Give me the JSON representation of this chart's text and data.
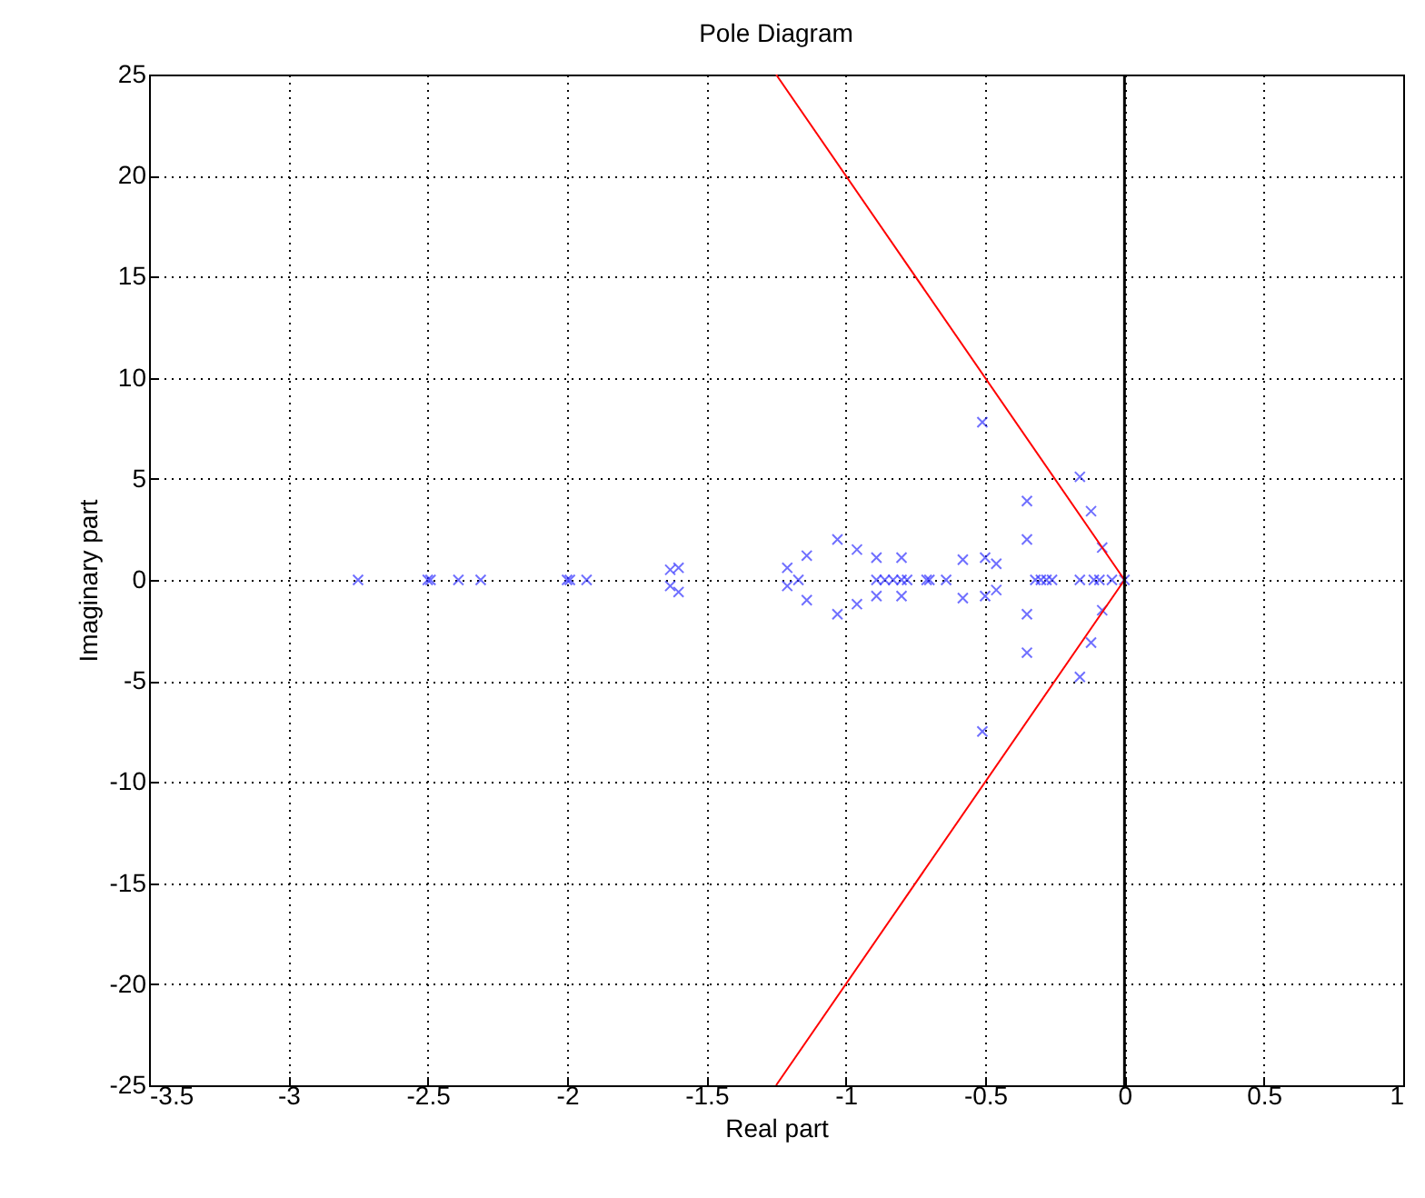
{
  "chart_data": {
    "type": "scatter",
    "title": "Pole Diagram",
    "xlabel": "Real part",
    "ylabel": "Imaginary part",
    "xlim": [
      -3.5,
      1
    ],
    "ylim": [
      -25,
      25
    ],
    "xticks": [
      -3.5,
      -3,
      -2.5,
      -2,
      -1.5,
      -1,
      -0.5,
      0,
      0.5,
      1
    ],
    "yticks": [
      -25,
      -20,
      -15,
      -10,
      -5,
      0,
      5,
      10,
      15,
      20,
      25
    ],
    "grid": true,
    "series": [
      {
        "color": "#3333ff",
        "marker": "cross",
        "x": [
          -2.75,
          -2.5,
          -2.49,
          -2.39,
          -2.31,
          -2.0,
          -1.99,
          -1.93,
          -1.63,
          -1.6,
          -1.63,
          -1.6,
          -1.21,
          -1.21,
          -1.17,
          -1.14,
          -1.14,
          -1.03,
          -1.03,
          -0.96,
          -0.96,
          -0.89,
          -0.89,
          -0.8,
          -0.8,
          -0.89,
          -0.86,
          -0.83,
          -0.8,
          -0.78,
          -0.71,
          -0.7,
          -0.64,
          -0.58,
          -0.58,
          -0.5,
          -0.46,
          -0.5,
          -0.46,
          -0.51,
          -0.51,
          -0.35,
          -0.35,
          -0.35,
          -0.35,
          -0.32,
          -0.3,
          -0.28,
          -0.26,
          -0.16,
          -0.11,
          -0.09,
          -0.045,
          0.0,
          -0.16,
          -0.12,
          -0.08,
          -0.08,
          -0.12,
          -0.16
        ],
        "values": [
          0,
          0,
          0,
          0,
          0,
          0,
          0,
          0,
          0.5,
          0.6,
          -0.3,
          -0.6,
          0.6,
          -0.3,
          0,
          1.2,
          -1.0,
          2.0,
          -1.7,
          1.5,
          -1.2,
          1.1,
          -0.8,
          1.1,
          -0.8,
          0,
          0,
          0,
          0,
          0,
          0,
          0,
          0,
          1.0,
          -0.9,
          1.1,
          0.8,
          -0.8,
          -0.5,
          7.8,
          -7.5,
          3.9,
          2.0,
          -1.7,
          -3.6,
          0,
          0,
          0,
          0,
          0,
          0,
          0,
          0,
          0,
          5.1,
          3.4,
          1.6,
          -1.5,
          -3.1,
          -4.8
        ]
      },
      {
        "type": "line",
        "color": "#ff0000",
        "x": [
          -1.25,
          0,
          -1.25
        ],
        "values": [
          25,
          0,
          -25
        ]
      }
    ],
    "ref_lines": [
      {
        "axis": "x",
        "value": 0,
        "color": "#000000"
      }
    ]
  }
}
